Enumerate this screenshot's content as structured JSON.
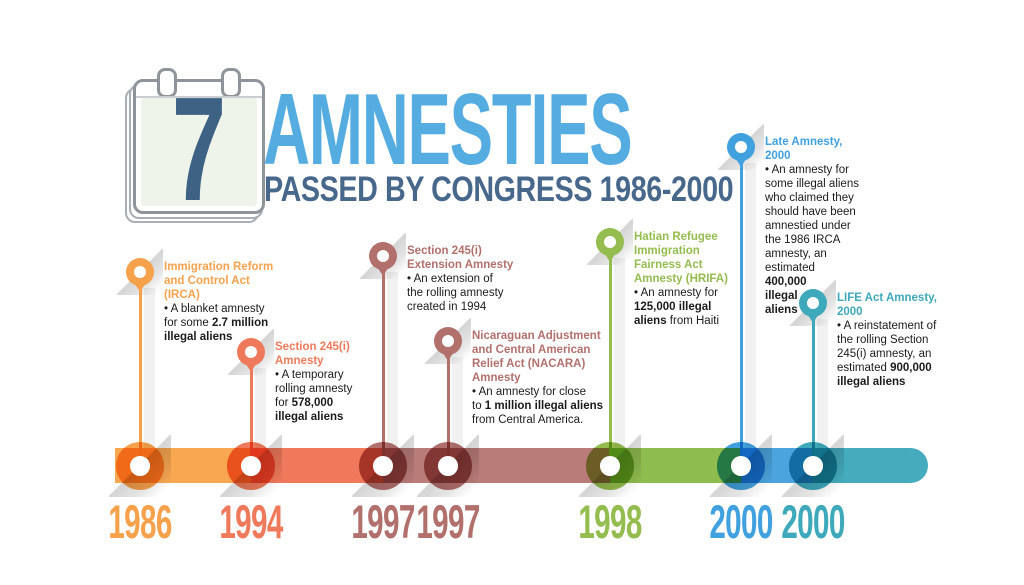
{
  "header": {
    "count": "7",
    "title": "AMNESTIES",
    "subtitle": "PASSED BY CONGRESS 1986-2000",
    "title_color": "#55ACE1",
    "subtitle_color": "#48688B"
  },
  "icons": {
    "calendar": "tear-off-calendar-icon",
    "marker": "map-pin-icon"
  },
  "events": [
    {
      "year": "1986",
      "color": "#F6A14B",
      "bar_color": "#F9A851",
      "title": "Immigration Reform\nand Control Act\n(IRCA)",
      "desc": [
        {
          "text": "• A blanket amnesty\nfor some "
        },
        {
          "text": "2.7 million\nillegal aliens",
          "bold": true
        }
      ]
    },
    {
      "year": "1994",
      "color": "#EF7A5B",
      "bar_color": "#F0795B",
      "title": "Section 245(i)\nAmnesty",
      "desc": [
        {
          "text": "• A temporary\nrolling amnesty\nfor "
        },
        {
          "text": "578,000\nillegal aliens",
          "bold": true
        }
      ]
    },
    {
      "year": "1997",
      "color": "#B2706D",
      "bar_color": "#BA7C79",
      "title": "Section 245(i)\nExtension Amnesty",
      "desc": [
        {
          "text": "• An extension of\nthe rolling amnesty\ncreated in 1994"
        }
      ]
    },
    {
      "year": "1997",
      "color": "#B2706D",
      "bar_color": "#BA7C79",
      "title": "Nicaraguan Adjustment\nand Central American\nRelief Act (NACARA)\nAmnesty",
      "desc": [
        {
          "text": "• An amnesty for close\nto "
        },
        {
          "text": "1 million illegal aliens",
          "bold": true
        },
        {
          "text": "\nfrom Central America."
        }
      ]
    },
    {
      "year": "1998",
      "color": "#94BC4E",
      "bar_color": "#8FBC4E",
      "title": "Hatian Refugee\nImmigration\nFairness Act\nAmnesty (HRIFA)",
      "desc": [
        {
          "text": "• An amnesty for\n"
        },
        {
          "text": "125,000 illegal\naliens",
          "bold": true
        },
        {
          "text": " from Haiti"
        }
      ]
    },
    {
      "year": "2000",
      "color": "#41A1DE",
      "bar_color": "#4BA4DE",
      "title": "Late Amnesty,\n2000",
      "desc": [
        {
          "text": "• An amnesty for\nsome illegal aliens\nwho claimed they\nshould have been\namnestied under\nthe 1986 IRCA\namnesty, an\nestimated\n"
        },
        {
          "text": "400,000\nillegal\naliens",
          "bold": true
        }
      ]
    },
    {
      "year": "2000",
      "color": "#3EA9BB",
      "bar_color": "#45ACBD",
      "title": "LIFE Act Amnesty,\n2000",
      "desc": [
        {
          "text": "• A reinstatement of\nthe rolling Section\n245(i) amnesty, an\nestimated "
        },
        {
          "text": "900,000\nillegal aliens",
          "bold": true
        }
      ]
    }
  ]
}
